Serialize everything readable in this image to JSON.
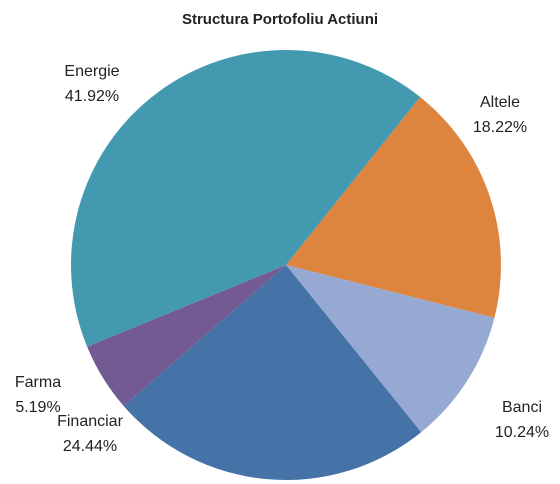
{
  "chart_data": {
    "type": "pie",
    "title": "Structura Portofoliu Actiuni",
    "categories": [
      "Altele",
      "Banci",
      "Financiar",
      "Farma",
      "Energie"
    ],
    "values": [
      18.22,
      10.24,
      24.44,
      5.19,
      41.92
    ],
    "value_labels": [
      "18.22%",
      "10.24%",
      "24.44%",
      "5.19%",
      "41.92%"
    ],
    "colors": [
      "#dd853e",
      "#95a9d3",
      "#4572a7",
      "#745a92",
      "#4299b0"
    ]
  }
}
